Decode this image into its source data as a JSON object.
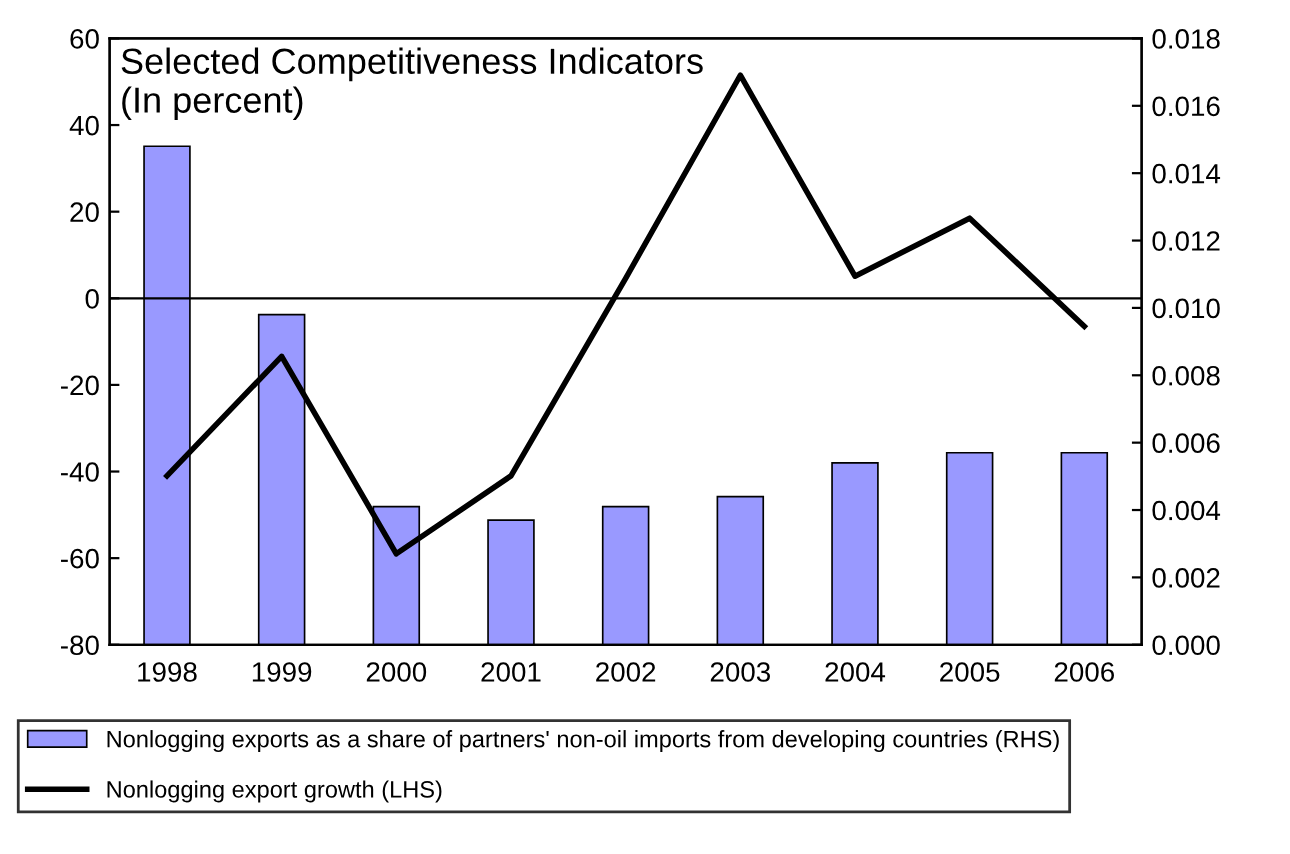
{
  "chart_data": {
    "type": "bar",
    "title": "Selected Competitiveness Indicators\n(In percent)",
    "categories": [
      "1998",
      "1999",
      "2000",
      "2001",
      "2002",
      "2003",
      "2004",
      "2005",
      "2006"
    ],
    "series": [
      {
        "name": "Nonlogging exports as a share of partners' non-oil imports from developing countries (RHS)",
        "axis": "y2",
        "color": "#9999ff",
        "values": [
          0.0148,
          0.0098,
          0.0041,
          0.0037,
          0.0041,
          0.0044,
          0.0054,
          0.0057,
          0.0057
        ]
      },
      {
        "name": "Nonlogging export growth (LHS)",
        "type": "line",
        "axis": "y",
        "color": "#000000",
        "values": [
          -41,
          -13.4,
          -59,
          -41,
          4.6,
          51.5,
          5.1,
          18.5,
          -6.5
        ]
      }
    ],
    "ylim": [
      -80,
      60
    ],
    "yticks": [
      -80,
      -60,
      -40,
      -20,
      0,
      20,
      40,
      60
    ],
    "y2lim": [
      0,
      0.018
    ],
    "y2ticks": [
      {
        "value": 0,
        "label": "0.000"
      },
      {
        "value": 0.002,
        "label": "0.002"
      },
      {
        "value": 0.004,
        "label": "0.004"
      },
      {
        "value": 0.006,
        "label": "0.006"
      },
      {
        "value": 0.008,
        "label": "0.008"
      },
      {
        "value": 0.01,
        "label": "0.010"
      },
      {
        "value": 0.012,
        "label": "0.012"
      },
      {
        "value": 0.014,
        "label": "0.014"
      },
      {
        "value": 0.016,
        "label": "0.016"
      },
      {
        "value": 0.018,
        "label": "0.018"
      }
    ],
    "ref_lines": [
      {
        "axis": "y",
        "value": 0,
        "color": "#000000"
      }
    ],
    "legend": "bottom",
    "grid": false
  }
}
